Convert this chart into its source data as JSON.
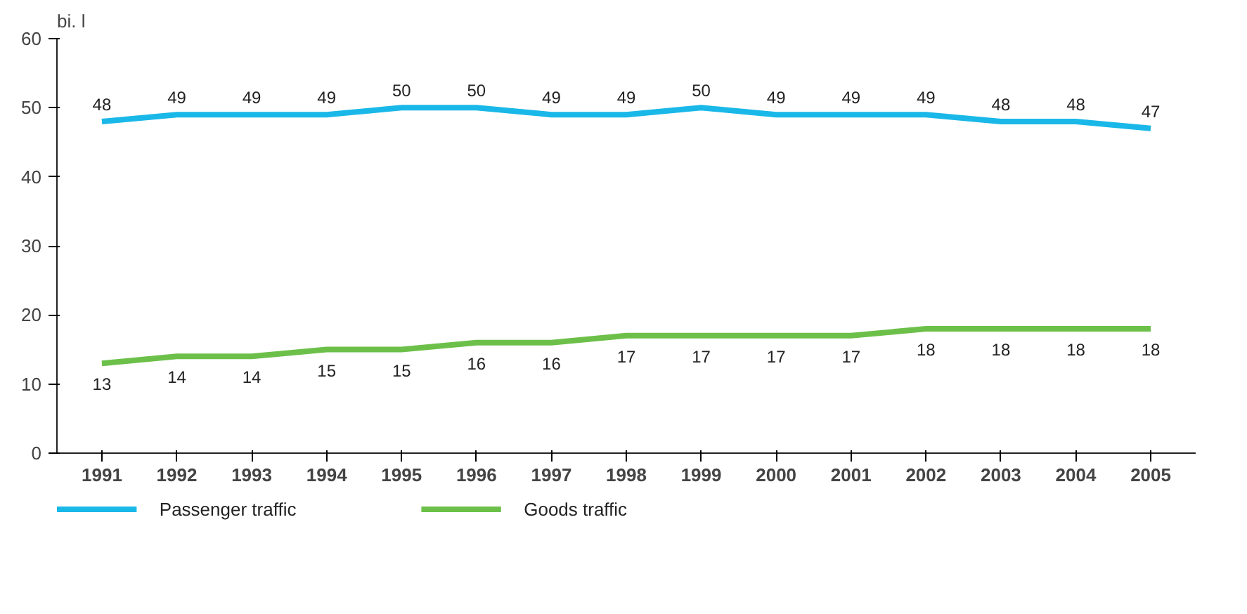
{
  "chart_data": {
    "type": "line",
    "ylabel": "bi. l",
    "categories": [
      "1991",
      "1992",
      "1993",
      "1994",
      "1995",
      "1996",
      "1997",
      "1998",
      "1999",
      "2000",
      "2001",
      "2002",
      "2003",
      "2004",
      "2005"
    ],
    "series": [
      {
        "name": "Passenger traffic",
        "color": "#1ab8e8",
        "values": [
          48,
          49,
          49,
          49,
          50,
          50,
          49,
          49,
          50,
          49,
          49,
          49,
          48,
          48,
          47
        ]
      },
      {
        "name": "Goods traffic",
        "color": "#6cc04a",
        "values": [
          13,
          14,
          14,
          15,
          15,
          16,
          16,
          17,
          17,
          17,
          17,
          18,
          18,
          18,
          18
        ]
      }
    ],
    "ylim": [
      0,
      60
    ],
    "yticks": [
      0,
      10,
      20,
      30,
      40,
      50,
      60
    ],
    "grid": false,
    "legend": "bottom",
    "data_labels": true,
    "marker": "none",
    "line_style": "solid"
  }
}
